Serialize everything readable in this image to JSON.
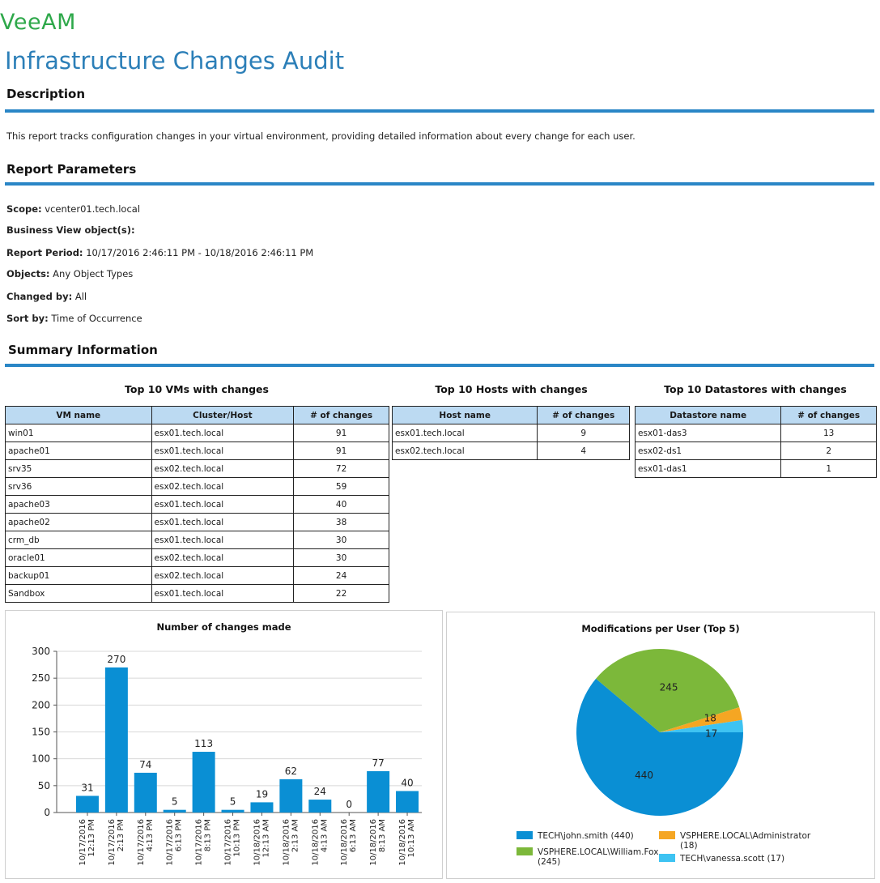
{
  "brand": "VeeAM",
  "report_title": "Infrastructure Changes Audit",
  "sections": {
    "description": "Description",
    "parameters": "Report Parameters",
    "summary": "Summary Information"
  },
  "description_text": "This report tracks configuration changes in your virtual environment, providing detailed information about every change for each user.",
  "parameters": [
    {
      "label": "Scope:",
      "value": "vcenter01.tech.local"
    },
    {
      "label": "Business View object(s):",
      "value": ""
    },
    {
      "label": "Report Period:",
      "value": "10/17/2016 2:46:11 PM - 10/18/2016 2:46:11 PM"
    },
    {
      "label": "Objects:",
      "value": "Any Object Types"
    },
    {
      "label": "Changed by:",
      "value": "All"
    },
    {
      "label": "Sort by:",
      "value": "Time of Occurrence"
    }
  ],
  "vm_table": {
    "title": "Top 10 VMs with changes",
    "headers": [
      "VM name",
      "Cluster/Host",
      "# of changes"
    ],
    "rows": [
      [
        "win01",
        "esx01.tech.local",
        "91"
      ],
      [
        "apache01",
        "esx01.tech.local",
        "91"
      ],
      [
        "srv35",
        "esx02.tech.local",
        "72"
      ],
      [
        "srv36",
        "esx02.tech.local",
        "59"
      ],
      [
        "apache03",
        "esx01.tech.local",
        "40"
      ],
      [
        "apache02",
        "esx01.tech.local",
        "38"
      ],
      [
        "crm_db",
        "esx01.tech.local",
        "30"
      ],
      [
        "oracle01",
        "esx02.tech.local",
        "30"
      ],
      [
        "backup01",
        "esx02.tech.local",
        "24"
      ],
      [
        "Sandbox",
        "esx01.tech.local",
        "22"
      ]
    ]
  },
  "host_table": {
    "title": "Top 10 Hosts with changes",
    "headers": [
      "Host name",
      "# of changes"
    ],
    "rows": [
      [
        "esx01.tech.local",
        "9"
      ],
      [
        "esx02.tech.local",
        "4"
      ]
    ]
  },
  "ds_table": {
    "title": "Top 10 Datastores with changes",
    "headers": [
      "Datastore name",
      "# of changes"
    ],
    "rows": [
      [
        "esx01-das3",
        "13"
      ],
      [
        "esx02-ds1",
        "2"
      ],
      [
        "esx01-das1",
        "1"
      ]
    ]
  },
  "chart_data": [
    {
      "type": "bar",
      "title": "Number of changes made",
      "categories": [
        [
          "10/17/2016",
          "12:13 PM"
        ],
        [
          "10/17/2016",
          "2:13 PM"
        ],
        [
          "10/17/2016",
          "4:13 PM"
        ],
        [
          "10/17/2016",
          "6:13 PM"
        ],
        [
          "10/17/2016",
          "8:13 PM"
        ],
        [
          "10/17/2016",
          "10:13 PM"
        ],
        [
          "10/18/2016",
          "12:13 AM"
        ],
        [
          "10/18/2016",
          "2:13 AM"
        ],
        [
          "10/18/2016",
          "4:13 AM"
        ],
        [
          "10/18/2016",
          "6:13 AM"
        ],
        [
          "10/18/2016",
          "8:13 AM"
        ],
        [
          "10/18/2016",
          "10:13 AM"
        ]
      ],
      "values": [
        31,
        270,
        74,
        5,
        113,
        5,
        19,
        62,
        24,
        0,
        77,
        40
      ],
      "ylim": [
        0,
        300
      ],
      "yticks": [
        0,
        50,
        100,
        150,
        200,
        250,
        300
      ],
      "grid": true,
      "color": "#0a8fd4"
    },
    {
      "type": "pie",
      "title": "Modifications per User (Top 5)",
      "slices": [
        {
          "label": "TECH\\john.smith (440)",
          "value": 440,
          "color": "#0a8fd4"
        },
        {
          "label": "VSPHERE.LOCAL\\William.Fox (245)",
          "value": 245,
          "color": "#7cb83a"
        },
        {
          "label": "VSPHERE.LOCAL\\Administrator (18)",
          "value": 18,
          "color": "#f5a623"
        },
        {
          "label": "TECH\\vanessa.scott (17)",
          "value": 17,
          "color": "#3ec3f2"
        }
      ]
    }
  ]
}
